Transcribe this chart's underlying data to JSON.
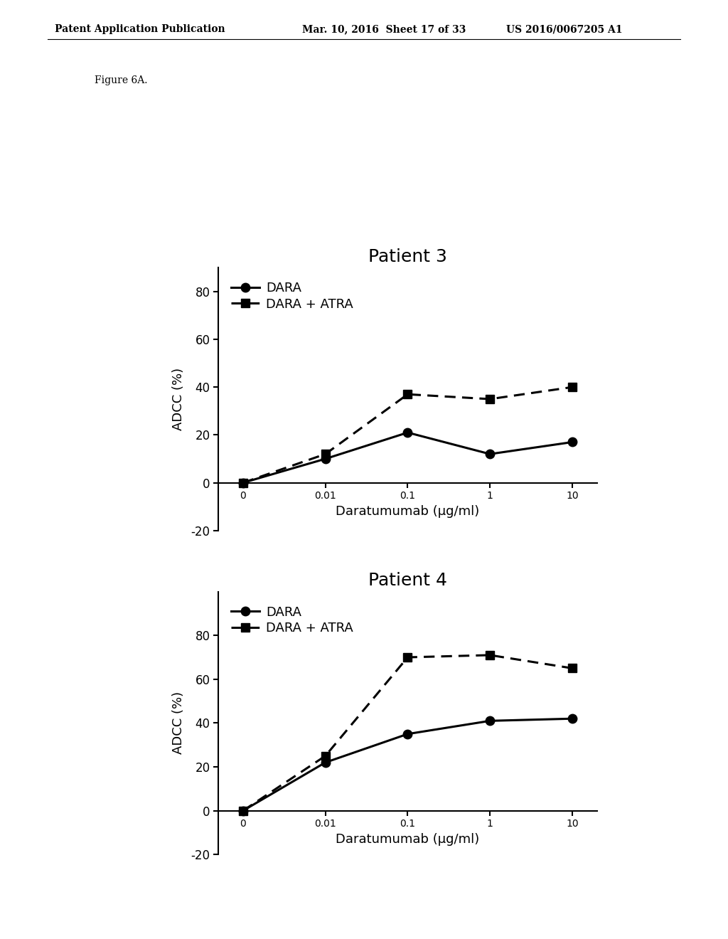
{
  "header_left": "Patent Application Publication",
  "header_mid": "Mar. 10, 2016  Sheet 17 of 33",
  "header_right": "US 2016/0067205 A1",
  "figure_label": "Figure 6A.",
  "plot1": {
    "title": "Patient 3",
    "xlabel": "Daratumumab (μg/ml)",
    "ylabel": "ADCC (%)",
    "dara_y": [
      0,
      10,
      21,
      12,
      17
    ],
    "dara_atra_y": [
      0,
      12,
      37,
      35,
      40
    ],
    "ylim": [
      -20,
      90
    ],
    "yticks": [
      -20,
      0,
      20,
      40,
      60,
      80
    ],
    "xtick_labels": [
      "0",
      "0.01",
      "0.1",
      "1",
      "10"
    ]
  },
  "plot2": {
    "title": "Patient 4",
    "xlabel": "Daratumumab (μg/ml)",
    "ylabel": "ADCC (%)",
    "dara_y": [
      0,
      22,
      35,
      41,
      42
    ],
    "dara_atra_y": [
      0,
      25,
      70,
      71,
      65
    ],
    "ylim": [
      -20,
      100
    ],
    "yticks": [
      -20,
      0,
      20,
      40,
      60,
      80
    ],
    "xtick_labels": [
      "0",
      "0.01",
      "0.1",
      "1",
      "10"
    ]
  },
  "legend_dara": "DARA",
  "legend_dara_atra": "DARA + ATRA",
  "line_color": "#000000",
  "bg_color": "#ffffff",
  "title_fontsize": 18,
  "label_fontsize": 13,
  "tick_fontsize": 12,
  "legend_fontsize": 13,
  "header_fontsize": 10
}
